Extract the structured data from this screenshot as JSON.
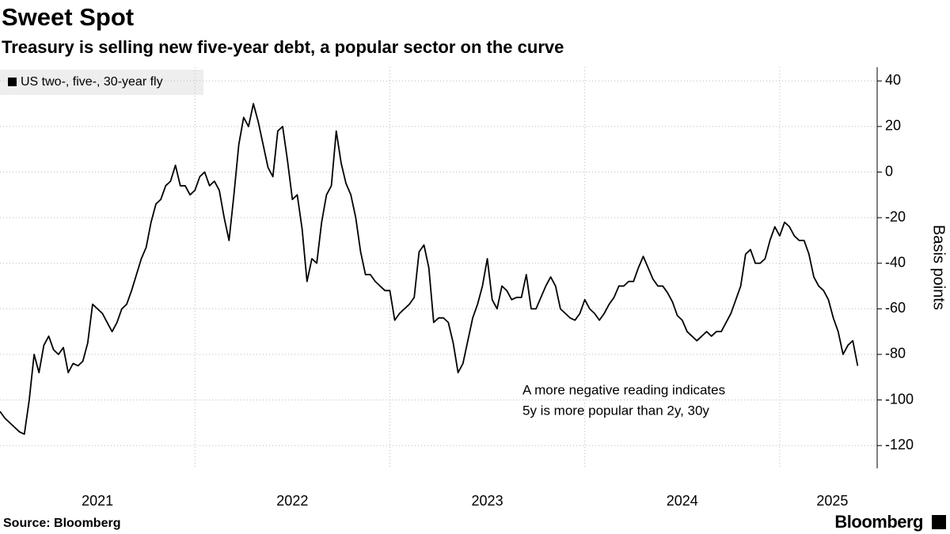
{
  "chart_data": {
    "type": "line",
    "title": "Sweet Spot",
    "subtitle": "Treasury is selling new five-year debt, a popular sector on the curve",
    "y_label": "Basis points",
    "annotation": [
      "A more negative reading indicates",
      "5y is more popular than 2y, 30y"
    ],
    "source": "Source: Bloomberg",
    "brand": "Bloomberg",
    "x": [
      2021,
      2021.025,
      2021.05,
      2021.075,
      2021.1,
      2021.125,
      2021.15,
      2021.175,
      2021.2,
      2021.225,
      2021.25,
      2021.275,
      2021.3,
      2021.325,
      2021.35,
      2021.375,
      2021.4,
      2021.425,
      2021.45,
      2021.475,
      2021.5,
      2021.525,
      2021.55,
      2021.575,
      2021.6,
      2021.625,
      2021.65,
      2021.675,
      2021.7,
      2021.725,
      2021.75,
      2021.775,
      2021.8,
      2021.825,
      2021.85,
      2021.875,
      2021.9,
      2021.925,
      2021.95,
      2021.975,
      2022,
      2022.025,
      2022.05,
      2022.075,
      2022.1,
      2022.125,
      2022.15,
      2022.175,
      2022.2,
      2022.225,
      2022.25,
      2022.275,
      2022.3,
      2022.325,
      2022.35,
      2022.375,
      2022.4,
      2022.425,
      2022.45,
      2022.475,
      2022.5,
      2022.525,
      2022.55,
      2022.575,
      2022.6,
      2022.625,
      2022.65,
      2022.675,
      2022.7,
      2022.725,
      2022.75,
      2022.775,
      2022.8,
      2022.825,
      2022.85,
      2022.875,
      2022.9,
      2022.925,
      2022.95,
      2022.975,
      2023,
      2023.025,
      2023.05,
      2023.075,
      2023.1,
      2023.125,
      2023.15,
      2023.175,
      2023.2,
      2023.225,
      2023.25,
      2023.275,
      2023.3,
      2023.325,
      2023.35,
      2023.375,
      2023.4,
      2023.425,
      2023.45,
      2023.475,
      2023.5,
      2023.525,
      2023.55,
      2023.575,
      2023.6,
      2023.625,
      2023.65,
      2023.675,
      2023.7,
      2023.725,
      2023.75,
      2023.775,
      2023.8,
      2023.825,
      2023.85,
      2023.875,
      2023.9,
      2023.925,
      2023.95,
      2023.975,
      2024,
      2024.025,
      2024.05,
      2024.075,
      2024.1,
      2024.125,
      2024.15,
      2024.175,
      2024.2,
      2024.225,
      2024.25,
      2024.275,
      2024.3,
      2024.325,
      2024.35,
      2024.375,
      2024.4,
      2024.425,
      2024.45,
      2024.475,
      2024.5,
      2024.525,
      2024.55,
      2024.575,
      2024.6,
      2024.625,
      2024.65,
      2024.675,
      2024.7,
      2024.725,
      2024.75,
      2024.775,
      2024.8,
      2024.825,
      2024.85,
      2024.875,
      2024.9,
      2024.925,
      2024.95,
      2024.975,
      2025,
      2025.025,
      2025.05,
      2025.075,
      2025.1,
      2025.125,
      2025.15,
      2025.175,
      2025.2,
      2025.225,
      2025.25,
      2025.275,
      2025.3,
      2025.325,
      2025.35,
      2025.375,
      2025.4
    ],
    "series": [
      {
        "name": "US two-, five-, 30-year fly",
        "color": "#000000",
        "values": [
          -105,
          -108,
          -110,
          -112,
          -114,
          -115,
          -100,
          -80,
          -88,
          -76,
          -72,
          -78,
          -80,
          -77,
          -88,
          -84,
          -85,
          -83,
          -75,
          -58,
          -60,
          -62,
          -66,
          -70,
          -66,
          -60,
          -58,
          -52,
          -45,
          -38,
          -33,
          -22,
          -14,
          -12,
          -6,
          -4,
          3,
          -6,
          -6,
          -10,
          -8,
          -2,
          0,
          -6,
          -4,
          -8,
          -20,
          -30,
          -10,
          12,
          24,
          20,
          30,
          22,
          12,
          2,
          -2,
          18,
          20,
          5,
          -12,
          -10,
          -25,
          -48,
          -38,
          -40,
          -22,
          -10,
          -6,
          18,
          4,
          -5,
          -10,
          -20,
          -35,
          -45,
          -45,
          -48,
          -50,
          -52,
          -52,
          -65,
          -62,
          -60,
          -58,
          -55,
          -35,
          -32,
          -42,
          -66,
          -64,
          -64,
          -66,
          -75,
          -88,
          -84,
          -74,
          -64,
          -58,
          -50,
          -38,
          -56,
          -60,
          -50,
          -52,
          -56,
          -55,
          -55,
          -45,
          -60,
          -60,
          -55,
          -50,
          -46,
          -50,
          -60,
          -62,
          -64,
          -65,
          -62,
          -56,
          -60,
          -62,
          -65,
          -62,
          -58,
          -55,
          -50,
          -50,
          -48,
          -48,
          -42,
          -37,
          -42,
          -47,
          -50,
          -50,
          -53,
          -57,
          -63,
          -65,
          -70,
          -72,
          -74,
          -72,
          -70,
          -72,
          -70,
          -70,
          -66,
          -62,
          -56,
          -50,
          -36,
          -34,
          -40,
          -40,
          -38,
          -30,
          -24,
          -28,
          -22,
          -24,
          -28,
          -30,
          -30,
          -36,
          -46,
          -50,
          -52,
          -56,
          -64,
          -70,
          -80,
          -76,
          -74,
          -85
        ]
      }
    ],
    "xlim": [
      2021,
      2025.5
    ],
    "xticks": [
      {
        "value": 2021.5,
        "label": "2021"
      },
      {
        "value": 2022.5,
        "label": "2022"
      },
      {
        "value": 2023.5,
        "label": "2023"
      },
      {
        "value": 2024.5,
        "label": "2024"
      },
      {
        "value": 2025.27,
        "label": "2025"
      }
    ],
    "xgrid": [
      2022,
      2023,
      2024,
      2025
    ],
    "ylim": [
      -130,
      46
    ],
    "yticks": [
      -120,
      -100,
      -80,
      -60,
      -40,
      -20,
      0,
      20,
      40
    ],
    "grid": true
  }
}
